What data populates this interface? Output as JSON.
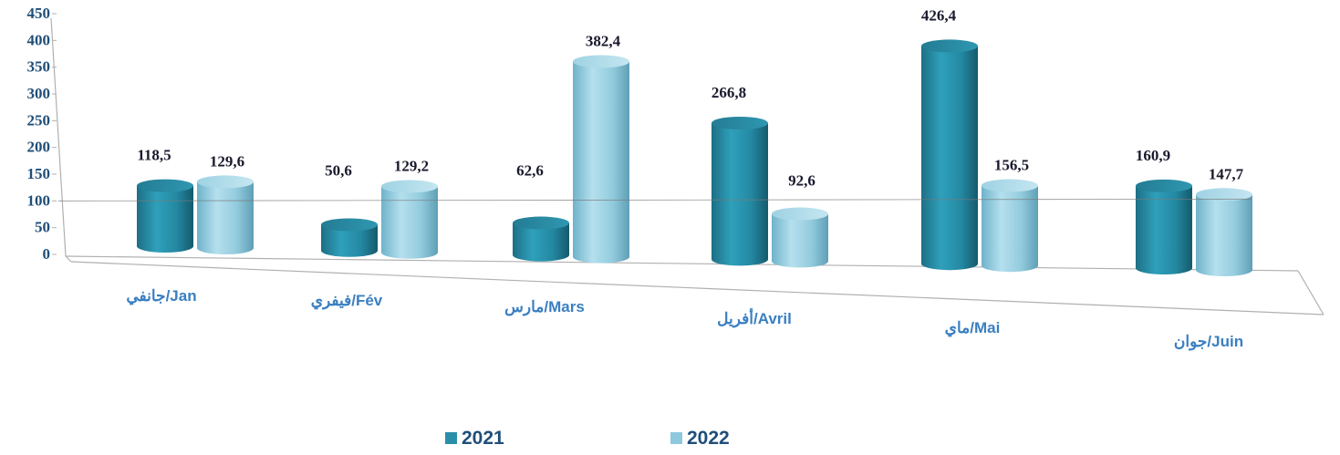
{
  "chart_data": {
    "type": "bar",
    "categories": [
      "جانفي/Jan",
      "فيفري/Fév",
      "مارس/Mars",
      "أفريل/Avril",
      "ماي/Mai",
      "جوان/Juin"
    ],
    "series": [
      {
        "name": "2021",
        "values": [
          118.5,
          50.6,
          62.6,
          266.8,
          426.4,
          160.9
        ],
        "labels": [
          "118,5",
          "50,6",
          "62,6",
          "266,8",
          "426,4",
          "160,9"
        ],
        "color": "#2a8fa8"
      },
      {
        "name": "2022",
        "values": [
          129.6,
          129.2,
          382.4,
          92.6,
          156.5,
          147.7
        ],
        "labels": [
          "129,6",
          "129,2",
          "382,4",
          "92,6",
          "156,5",
          "147,7"
        ],
        "color": "#8ec8dc"
      }
    ],
    "yticks": [
      "0",
      "50",
      "100",
      "150",
      "200",
      "250",
      "300",
      "350",
      "400",
      "450"
    ],
    "ylim": [
      0,
      450
    ],
    "grid": false,
    "legend": "bottom",
    "title": "",
    "xlabel": "",
    "ylabel": ""
  }
}
